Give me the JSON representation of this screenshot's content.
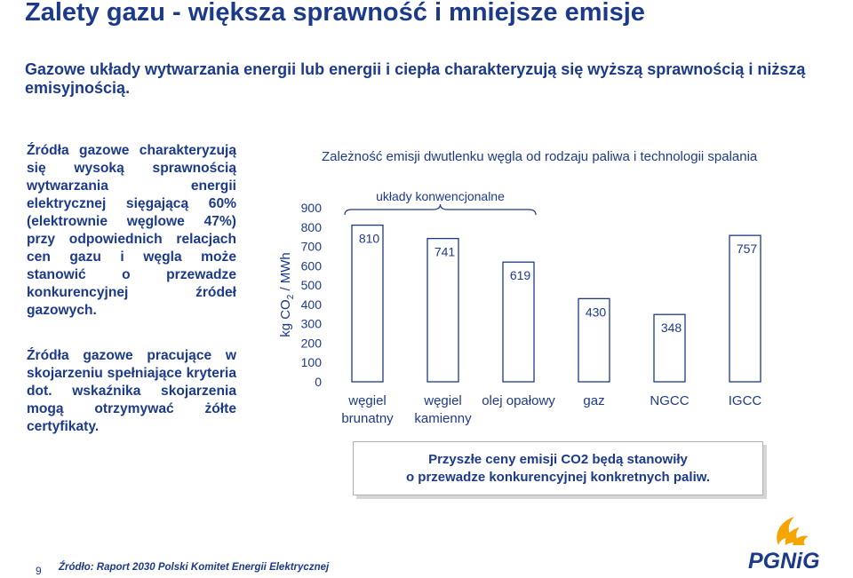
{
  "slide": {
    "title": "Zalety gazu - większa sprawność i mniejsze emisje",
    "subtitle": "Gazowe układy wytwarzania energii lub energii i ciepła charakteryzują się wyższą sprawnością i niższą emisyjnością.",
    "paragraph1": "Źródła gazowe charakteryzują się wysoką sprawnością wytwarzania energii elektrycznej sięgającą 60% (elektrownie węglowe 47%) przy odpowiednich relacjach cen gazu i węgla może stanowić o przewadze konkurencyjnej źródeł gazowych.",
    "paragraph2": "Źródła gazowe pracujące w skojarzeniu spełniające kryteria dot. wskaźnika skojarzenia mogą otrzymywać żółte certyfikaty.",
    "info_line1": "Przyszłe ceny emisji CO2 będą stanowiły",
    "info_line2": "o przewadze konkurencyjnej konkretnych paliw.",
    "page_number": "9",
    "source": "Źródło: Raport 2030 Polski Komitet Energii Elektrycznej",
    "logo_text": "PGNiG",
    "logo_colors": [
      "#f5a400",
      "#1c3a8a"
    ]
  },
  "chart_data": {
    "type": "bar",
    "title": "Zależność emisji dwutlenku węgla od rodzaju paliwa i technologii spalania",
    "ylabel_main": "kg CO",
    "ylabel_sub": "2",
    "ylabel_rest": " / MWh",
    "categories": [
      [
        "węgiel",
        "brunatny"
      ],
      [
        "węgiel",
        "kamienny"
      ],
      [
        "olej opałowy"
      ],
      [
        "gaz"
      ],
      [
        "NGCC"
      ],
      [
        "IGCC"
      ]
    ],
    "values": [
      810,
      741,
      619,
      430,
      348,
      757
    ],
    "value_labels": [
      "810",
      "741",
      "619",
      "430",
      "348",
      "757"
    ],
    "ylim": [
      0,
      900
    ],
    "yticks": [
      "0",
      "100",
      "200",
      "300",
      "400",
      "500",
      "600",
      "700",
      "800",
      "900"
    ],
    "annotation": "układy konwencjonalne",
    "bar_color": "#ffffff",
    "bar_edge": "#1c3a8a",
    "text_color": "#1c3a8a"
  }
}
